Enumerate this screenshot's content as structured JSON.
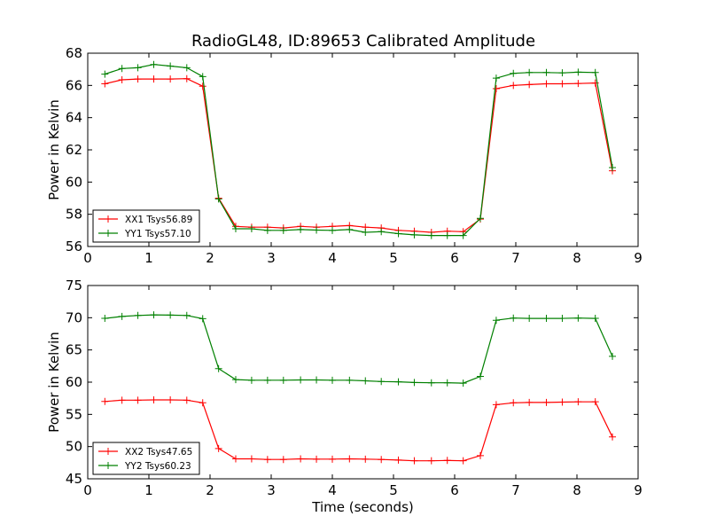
{
  "title": "RadioGL48, ID:89653 Calibrated Amplitude",
  "chart_data": [
    {
      "type": "line",
      "title": "RadioGL48, ID:89653 Calibrated Amplitude",
      "xlabel": "",
      "ylabel": "Power in Kelvin",
      "xlim": [
        0,
        9
      ],
      "ylim": [
        56,
        68
      ],
      "xticks": [
        0,
        1,
        2,
        3,
        4,
        5,
        6,
        7,
        8,
        9
      ],
      "yticks": [
        56,
        58,
        60,
        62,
        64,
        66,
        68
      ],
      "grid": false,
      "legend_position": "lower-left",
      "x": [
        0.28,
        0.56,
        0.82,
        1.08,
        1.35,
        1.62,
        1.88,
        2.14,
        2.42,
        2.68,
        2.94,
        3.2,
        3.48,
        3.74,
        4.0,
        4.28,
        4.54,
        4.8,
        5.08,
        5.34,
        5.62,
        5.88,
        6.14,
        6.42,
        6.68,
        6.96,
        7.22,
        7.5,
        7.76,
        8.02,
        8.3,
        8.58
      ],
      "series": [
        {
          "name": "XX1 Tsys56.89",
          "color": "#ff0000",
          "values": [
            66.1,
            66.35,
            66.4,
            66.4,
            66.4,
            66.42,
            65.95,
            59.0,
            57.25,
            57.2,
            57.2,
            57.15,
            57.25,
            57.2,
            57.25,
            57.3,
            57.2,
            57.15,
            57.0,
            56.95,
            56.88,
            56.95,
            56.92,
            57.7,
            65.8,
            66.0,
            66.05,
            66.1,
            66.1,
            66.12,
            66.15,
            60.7
          ]
        },
        {
          "name": "YY1 Tsys57.10",
          "color": "#008000",
          "values": [
            66.7,
            67.05,
            67.1,
            67.3,
            67.2,
            67.1,
            66.55,
            58.95,
            57.1,
            57.1,
            57.0,
            57.0,
            57.05,
            57.02,
            57.0,
            57.05,
            56.88,
            56.92,
            56.8,
            56.72,
            56.68,
            56.68,
            56.68,
            57.75,
            66.45,
            66.75,
            66.8,
            66.8,
            66.78,
            66.82,
            66.8,
            60.9
          ]
        }
      ]
    },
    {
      "type": "line",
      "title": "",
      "xlabel": "Time (seconds)",
      "ylabel": "Power in Kelvin",
      "xlim": [
        0,
        9
      ],
      "ylim": [
        45,
        75
      ],
      "xticks": [
        0,
        1,
        2,
        3,
        4,
        5,
        6,
        7,
        8,
        9
      ],
      "yticks": [
        45,
        50,
        55,
        60,
        65,
        70,
        75
      ],
      "grid": false,
      "legend_position": "lower-left",
      "x": [
        0.28,
        0.56,
        0.82,
        1.08,
        1.35,
        1.62,
        1.88,
        2.14,
        2.42,
        2.68,
        2.94,
        3.2,
        3.48,
        3.74,
        4.0,
        4.28,
        4.54,
        4.8,
        5.08,
        5.34,
        5.62,
        5.88,
        6.14,
        6.42,
        6.68,
        6.96,
        7.22,
        7.5,
        7.76,
        8.02,
        8.3,
        8.58
      ],
      "series": [
        {
          "name": "XX2 Tsys47.65",
          "color": "#ff0000",
          "values": [
            57.0,
            57.2,
            57.2,
            57.25,
            57.25,
            57.2,
            56.8,
            49.7,
            48.1,
            48.1,
            48.0,
            48.0,
            48.1,
            48.05,
            48.05,
            48.1,
            48.05,
            48.0,
            47.9,
            47.8,
            47.8,
            47.85,
            47.8,
            48.6,
            56.5,
            56.8,
            56.85,
            56.85,
            56.9,
            56.95,
            56.95,
            51.5
          ]
        },
        {
          "name": "YY2 Tsys60.23",
          "color": "#008000",
          "values": [
            69.9,
            70.2,
            70.35,
            70.45,
            70.4,
            70.35,
            69.85,
            62.1,
            60.4,
            60.3,
            60.3,
            60.3,
            60.35,
            60.35,
            60.3,
            60.3,
            60.2,
            60.1,
            60.05,
            59.95,
            59.9,
            59.9,
            59.85,
            60.9,
            69.6,
            69.95,
            69.9,
            69.9,
            69.9,
            69.95,
            69.9,
            64.0
          ]
        }
      ]
    }
  ]
}
